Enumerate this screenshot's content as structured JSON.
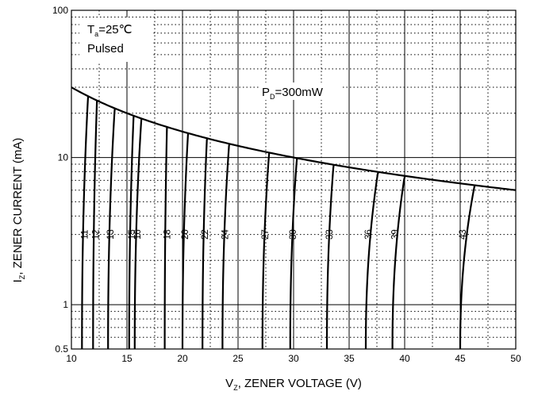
{
  "chart_data": {
    "type": "line",
    "x": {
      "label_main": "V",
      "label_sub": "Z",
      "label_rest": ", ZENER VOLTAGE (V)",
      "min": 10,
      "max": 50,
      "ticks": [
        10,
        15,
        20,
        25,
        30,
        35,
        40,
        45,
        50
      ],
      "scale": "linear"
    },
    "y": {
      "label_main": "I",
      "label_sub": "Z",
      "label_rest": ", ZENER CURRENT (mA)",
      "min": 0.5,
      "max": 100,
      "ticks": [
        0.5,
        1,
        10,
        100
      ],
      "tick_labels": [
        "0.5",
        "1",
        "10",
        "100"
      ],
      "scale": "log"
    },
    "grid": {
      "major": "solid",
      "minor": "dotted"
    },
    "annotations": {
      "ta_main": "T",
      "ta_sub": "a",
      "ta_rest": "=25℃",
      "pulsed": "Pulsed",
      "pd_main": "P",
      "pd_sub": "D",
      "pd_rest": "=300mW"
    },
    "power_limit": {
      "mW": 300,
      "v_end": 50
    },
    "series": [
      {
        "name": "11",
        "v_low": 10.95,
        "v_high": 11.5
      },
      {
        "name": "12",
        "v_low": 11.95,
        "v_high": 12.3
      },
      {
        "name": "13",
        "v_low": 13.3,
        "v_high": 13.9
      },
      {
        "name": "15",
        "v_low": 15.2,
        "v_high": 15.6
      },
      {
        "name": "16",
        "v_low": 15.7,
        "v_high": 16.3
      },
      {
        "name": "18",
        "v_low": 18.4,
        "v_high": 18.6
      },
      {
        "name": "20",
        "v_low": 20.0,
        "v_high": 20.5
      },
      {
        "name": "22",
        "v_low": 21.8,
        "v_high": 22.2
      },
      {
        "name": "24",
        "v_low": 23.6,
        "v_high": 24.2
      },
      {
        "name": "27",
        "v_low": 27.2,
        "v_high": 27.8
      },
      {
        "name": "30",
        "v_low": 29.7,
        "v_high": 30.3
      },
      {
        "name": "33",
        "v_low": 33.0,
        "v_high": 33.6
      },
      {
        "name": "36",
        "v_low": 36.5,
        "v_high": 37.6
      },
      {
        "name": "39",
        "v_low": 38.9,
        "v_high": 40.0
      },
      {
        "name": "43",
        "v_low": 45.0,
        "v_high": 46.3
      }
    ]
  }
}
